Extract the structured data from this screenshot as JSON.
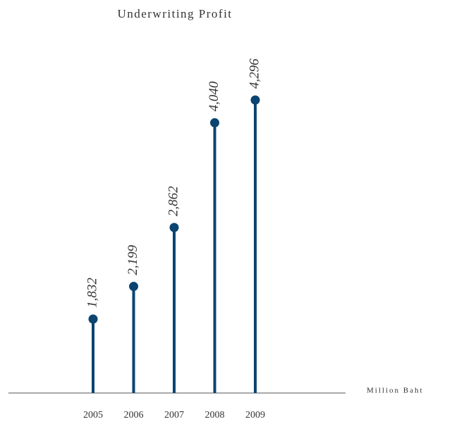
{
  "chart_data": {
    "type": "lollipop",
    "title": "Underwriting Profit",
    "y_label": "Million Baht",
    "categories": [
      "2005",
      "2006",
      "2007",
      "2008",
      "2009"
    ],
    "values": [
      1832,
      2199,
      2862,
      4040,
      4296
    ],
    "value_labels": [
      "1,832",
      "2,199",
      "2,862",
      "4,040",
      "4,296"
    ],
    "color": "#0b4470",
    "ylim": [
      1000,
      4600
    ]
  }
}
